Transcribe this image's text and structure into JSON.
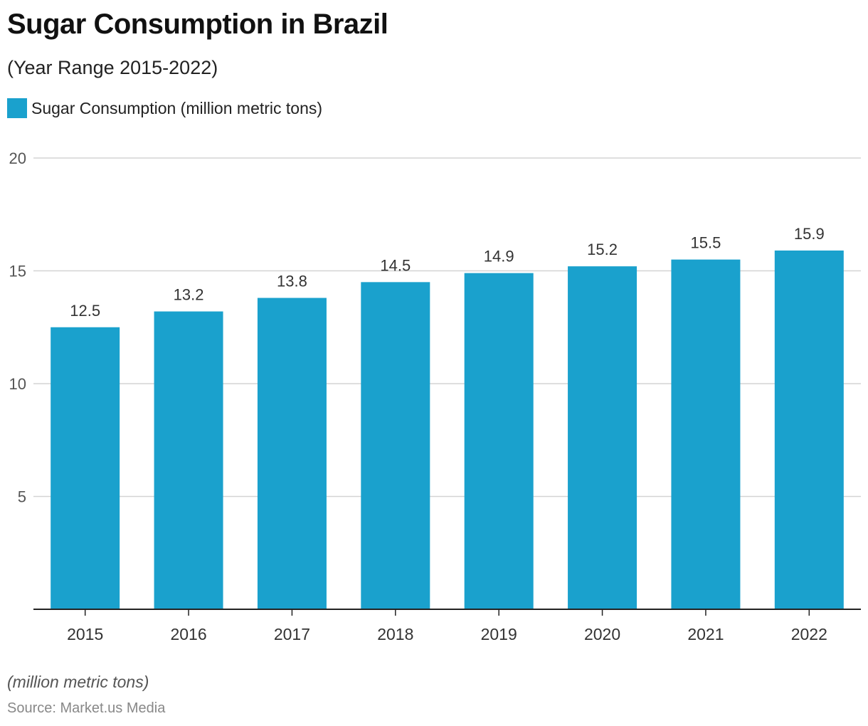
{
  "colors": {
    "bar": "#1aa1cd",
    "grid": "#d4d4d4",
    "axis": "#222222",
    "tick_text": "#555555",
    "label_text": "#333333"
  },
  "chart_data": {
    "type": "bar",
    "title": "Sugar Consumption in Brazil",
    "subtitle": "(Year Range 2015-2022)",
    "categories": [
      "2015",
      "2016",
      "2017",
      "2018",
      "2019",
      "2020",
      "2021",
      "2022"
    ],
    "series": [
      {
        "name": "Sugar Consumption (million metric tons)",
        "values": [
          12.5,
          13.2,
          13.8,
          14.5,
          14.9,
          15.2,
          15.5,
          15.9
        ]
      }
    ],
    "data_labels": [
      "12.5",
      "13.2",
      "13.8",
      "14.5",
      "14.9",
      "15.2",
      "15.5",
      "15.9"
    ],
    "ylim": [
      0,
      20
    ],
    "yticks": [
      5,
      10,
      15,
      20
    ],
    "grid": true,
    "legend_position": "top-left",
    "unit_note": "(million metric tons)",
    "source": "Source: Market.us Media"
  }
}
